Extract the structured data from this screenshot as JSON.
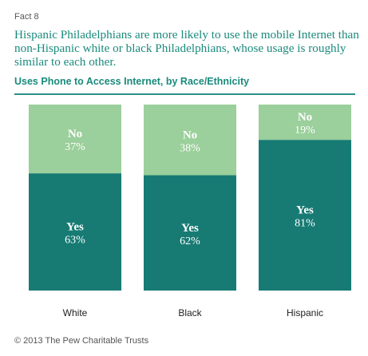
{
  "fact_label": "Fact 8",
  "headline": "Hispanic Philadelphians are more likely to use the mobile Internet than non-Hispanic white or black Philadelphians, whose usage is roughly similar to each other.",
  "footer": "© 2013 The Pew Charitable Trusts",
  "colors": {
    "yes": "#177b74",
    "no": "#9bcf9b",
    "title": "#1a8a7c",
    "label_on_yes": "#ffffff",
    "label_on_no": "#ffffff"
  },
  "chart_data": {
    "type": "bar",
    "stacked": true,
    "normalized": true,
    "title": "Uses Phone to Access Internet, by Race/Ethnicity",
    "categories": [
      "White",
      "Black",
      "Hispanic"
    ],
    "series": [
      {
        "name": "Yes",
        "values": [
          63,
          62,
          81
        ],
        "labels": [
          "63%",
          "62%",
          "81%"
        ]
      },
      {
        "name": "No",
        "values": [
          37,
          38,
          19
        ],
        "labels": [
          "37%",
          "38%",
          "19%"
        ]
      }
    ],
    "ylim": [
      0,
      100
    ],
    "legend": "none",
    "grid": false
  }
}
